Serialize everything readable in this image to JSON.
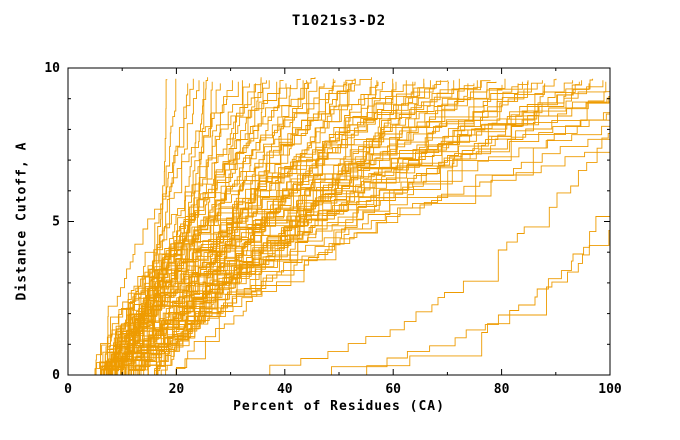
{
  "title": "T1021s3-D2",
  "chart_data": {
    "type": "line",
    "title": "T1021s3-D2",
    "xlabel": "Percent of Residues (CA)",
    "ylabel": "Distance Cutoff, A",
    "xlim": [
      0,
      100
    ],
    "ylim": [
      0,
      10
    ],
    "x_ticks": [
      0,
      20,
      40,
      60,
      80,
      100
    ],
    "x_minor_ticks": [
      10,
      30,
      50,
      70,
      90
    ],
    "y_minor_ticks": [
      1,
      2,
      3,
      4,
      6,
      7,
      8,
      9
    ],
    "y_labeled_ticks": [
      0,
      5,
      10
    ],
    "grid": false,
    "legend": "none",
    "line_color": "#EE9B00",
    "frame_color": "#000000",
    "note": "Ensemble of cumulative GDT-style curves; each curve listed as [start_x_percent, x_percent_at_top_cutoff, shape_exponent, max_cutoff_reached]",
    "curves": [
      [
        5,
        18,
        0.1,
        9.62
      ],
      [
        6,
        25,
        0.13,
        9.55
      ],
      [
        5,
        20,
        0.35,
        9.65
      ],
      [
        6,
        22,
        0.5,
        9.5
      ],
      [
        5,
        24,
        0.6,
        9.6
      ],
      [
        7,
        26,
        0.55,
        9.7
      ],
      [
        6,
        28,
        0.7,
        9.5
      ],
      [
        5,
        30,
        0.65,
        9.6
      ],
      [
        8,
        27,
        0.45,
        9.55
      ],
      [
        6,
        23,
        0.8,
        9.65
      ],
      [
        5,
        32,
        0.8,
        9.6
      ],
      [
        6,
        34,
        0.9,
        9.5
      ],
      [
        7,
        35,
        1.0,
        9.65
      ],
      [
        5,
        36,
        0.85,
        9.7
      ],
      [
        8,
        38,
        1.1,
        9.55
      ],
      [
        6,
        39,
        0.95,
        9.6
      ],
      [
        7,
        40,
        1.05,
        9.5
      ],
      [
        5,
        42,
        0.9,
        9.65
      ],
      [
        9,
        43,
        1.15,
        9.6
      ],
      [
        6,
        44,
        1.0,
        9.55
      ],
      [
        8,
        45,
        0.8,
        9.7
      ],
      [
        7,
        41,
        1.3,
        9.45
      ],
      [
        10,
        37,
        1.2,
        9.6
      ],
      [
        5,
        33,
        1.1,
        9.5
      ],
      [
        9,
        36,
        0.7,
        9.6
      ],
      [
        5,
        31,
        1.5,
        9.55
      ],
      [
        6,
        46,
        1.0,
        9.6
      ],
      [
        7,
        48,
        0.9,
        9.65
      ],
      [
        8,
        50,
        1.1,
        9.55
      ],
      [
        5,
        52,
        1.2,
        9.6
      ],
      [
        9,
        53,
        0.95,
        9.5
      ],
      [
        6,
        55,
        1.05,
        9.7
      ],
      [
        10,
        56,
        1.15,
        9.6
      ],
      [
        7,
        58,
        0.85,
        9.55
      ],
      [
        8,
        60,
        1.25,
        9.65
      ],
      [
        5,
        47,
        1.4,
        9.5
      ],
      [
        11,
        49,
        1.0,
        9.6
      ],
      [
        6,
        51,
        1.3,
        9.55
      ],
      [
        9,
        57,
        0.9,
        9.6
      ],
      [
        12,
        59,
        1.1,
        9.5
      ],
      [
        7,
        54,
        1.5,
        9.65
      ],
      [
        14,
        52,
        0.85,
        9.65
      ],
      [
        16,
        44,
        0.95,
        9.6
      ],
      [
        18,
        58,
        1.25,
        9.55
      ],
      [
        6,
        62,
        1.0,
        9.6
      ],
      [
        8,
        63,
        1.2,
        9.55
      ],
      [
        10,
        65,
        0.9,
        9.65
      ],
      [
        5,
        66,
        1.35,
        9.5
      ],
      [
        9,
        68,
        1.1,
        9.6
      ],
      [
        7,
        70,
        1.0,
        9.55
      ],
      [
        11,
        71,
        1.25,
        9.6
      ],
      [
        6,
        72,
        0.95,
        9.65
      ],
      [
        12,
        74,
        1.15,
        9.5
      ],
      [
        8,
        75,
        1.4,
        9.6
      ],
      [
        10,
        64,
        1.6,
        9.55
      ],
      [
        6,
        67,
        1.8,
        9.45
      ],
      [
        13,
        69,
        1.05,
        9.6
      ],
      [
        7,
        73,
        2.0,
        9.5
      ],
      [
        14,
        61,
        1.0,
        9.55
      ],
      [
        20,
        66,
        1.1,
        9.6
      ],
      [
        8,
        76,
        1.1,
        9.6
      ],
      [
        6,
        78,
        1.3,
        9.55
      ],
      [
        10,
        80,
        1.0,
        9.65
      ],
      [
        12,
        82,
        1.2,
        9.5
      ],
      [
        7,
        84,
        1.5,
        9.6
      ],
      [
        9,
        85,
        1.1,
        9.55
      ],
      [
        11,
        87,
        1.3,
        9.6
      ],
      [
        6,
        88,
        1.7,
        9.5
      ],
      [
        13,
        90,
        1.05,
        9.65
      ],
      [
        8,
        79,
        2.2,
        9.45
      ],
      [
        10,
        83,
        1.9,
        9.55
      ],
      [
        15,
        77,
        1.2,
        9.6
      ],
      [
        16,
        86,
        1.35,
        9.5
      ],
      [
        7,
        92,
        1.2,
        9.6
      ],
      [
        9,
        94,
        1.4,
        9.55
      ],
      [
        11,
        96,
        1.1,
        9.65
      ],
      [
        6,
        97,
        1.6,
        9.5
      ],
      [
        12,
        99,
        1.3,
        9.6
      ],
      [
        8,
        100,
        1.8,
        9.55
      ],
      [
        18,
        95,
        1.15,
        9.6
      ],
      [
        7,
        104,
        1.3,
        9.6
      ],
      [
        9,
        108,
        1.5,
        9.6
      ],
      [
        11,
        112,
        1.2,
        9.6
      ],
      [
        6,
        118,
        1.7,
        9.6
      ],
      [
        13,
        125,
        1.4,
        9.6
      ],
      [
        8,
        135,
        2.0,
        9.6
      ],
      [
        10,
        115,
        2.5,
        9.6
      ],
      [
        12,
        150,
        1.8,
        9.6
      ],
      [
        6,
        110,
        2.4,
        9.6
      ],
      [
        9,
        128,
        2.2,
        9.6
      ],
      [
        6,
        112,
        0.22,
        9.6
      ],
      [
        8,
        120,
        0.28,
        9.6
      ],
      [
        7,
        106,
        0.35,
        9.6
      ]
    ]
  }
}
